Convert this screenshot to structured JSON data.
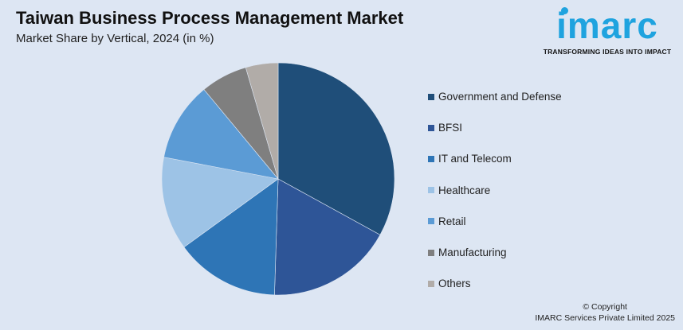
{
  "header": {
    "title": "Taiwan Business Process Management Market",
    "subtitle": "Market Share by Vertical, 2024 (in %)"
  },
  "logo": {
    "word": "imarc",
    "tagline": "TRANSFORMING IDEAS INTO IMPACT",
    "color": "#1fa3df"
  },
  "chart_data": {
    "type": "pie",
    "start_angle_deg": 0,
    "direction": "clockwise",
    "legend_position": "right",
    "series": [
      {
        "name": "Government and Defense",
        "value": 33,
        "color": "#1f4e79"
      },
      {
        "name": "BFSI",
        "value": 17.5,
        "color": "#2e5597"
      },
      {
        "name": "IT and Telecom",
        "value": 14.5,
        "color": "#2e75b6"
      },
      {
        "name": "Healthcare",
        "value": 13,
        "color": "#9dc3e6"
      },
      {
        "name": "Retail",
        "value": 11,
        "color": "#5b9bd5"
      },
      {
        "name": "Manufacturing",
        "value": 6.5,
        "color": "#7f7f7f"
      },
      {
        "name": "Others",
        "value": 4.5,
        "color": "#b1aca8"
      }
    ]
  },
  "footer": {
    "copyright_line1": "© Copyright",
    "copyright_line2": "IMARC Services Private Limited 2025"
  }
}
